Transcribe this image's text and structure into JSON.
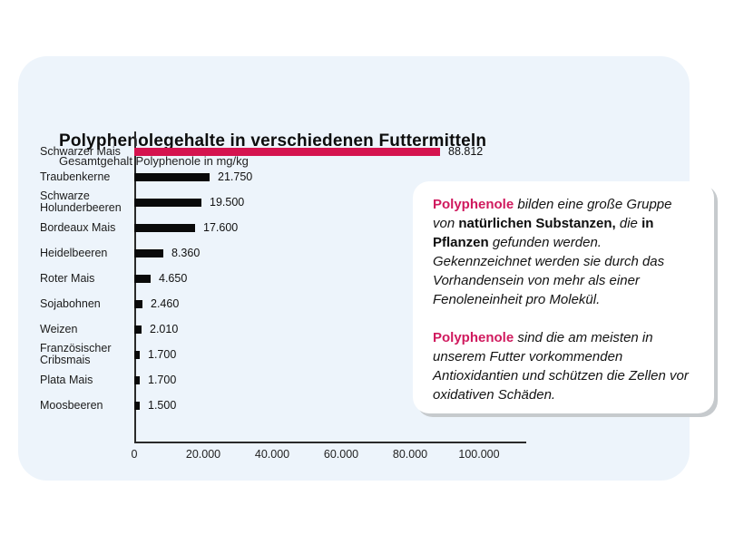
{
  "title": "Polyphenolegehalte in verschiedenen Futtermitteln",
  "subtitle": "Gesamtgehalt Polyphenole in mg/kg",
  "colors": {
    "card_bg": "#edf4fb",
    "highlight_bar": "#d5134f",
    "bar": "#0a0a0a",
    "pink_text": "#d01a5e",
    "axis": "#2a2a2a"
  },
  "chart_data": {
    "type": "bar",
    "orientation": "horizontal",
    "title": "Polyphenolegehalte in verschiedenen Futtermitteln",
    "xlabel": "",
    "ylabel": "",
    "categories": [
      "Schwarzer Mais",
      "Traubenkerne",
      "Schwarze Holunderbeeren",
      "Bordeaux Mais",
      "Heidelbeeren",
      "Roter Mais",
      "Sojabohnen",
      "Weizen",
      "Französischer Cribsmais",
      "Plata Mais",
      "Moosbeeren"
    ],
    "values": [
      88812,
      21750,
      19500,
      17600,
      8360,
      4650,
      2460,
      2010,
      1700,
      1700,
      1500
    ],
    "value_labels": [
      "88.812",
      "21.750",
      "19.500",
      "17.600",
      "8.360",
      "4.650",
      "2.460",
      "2.010",
      "1.700",
      "1.700",
      "1.500"
    ],
    "highlight_index": 0,
    "xlim": [
      0,
      100000
    ],
    "x_ticks": [
      "0",
      "20.000",
      "40.000",
      "60.000",
      "80.000",
      "100.000"
    ],
    "grid": false,
    "legend": "none"
  },
  "infobox": {
    "paragraphs": [
      {
        "segments": [
          {
            "text": "Polyphenole",
            "style": "pink"
          },
          {
            "text": " bilden eine große Gruppe von ",
            "style": "italic"
          },
          {
            "text": "natürlichen Substanzen,",
            "style": "bold"
          },
          {
            "text": " die ",
            "style": "italic"
          },
          {
            "text": "in Pflanzen",
            "style": "bold"
          },
          {
            "text": " gefunden werden. Gekennzeichnet werden sie durch das Vorhandensein von mehr als einer Fenoleneinheit pro Molekül.",
            "style": "italic"
          }
        ]
      },
      {
        "segments": [
          {
            "text": "Polyphenole",
            "style": "pink"
          },
          {
            "text": " sind die am meisten in unserem Futter vorkommenden Antioxidantien und schützen die Zellen vor oxidativen Schäden.",
            "style": "italic"
          }
        ]
      }
    ]
  }
}
